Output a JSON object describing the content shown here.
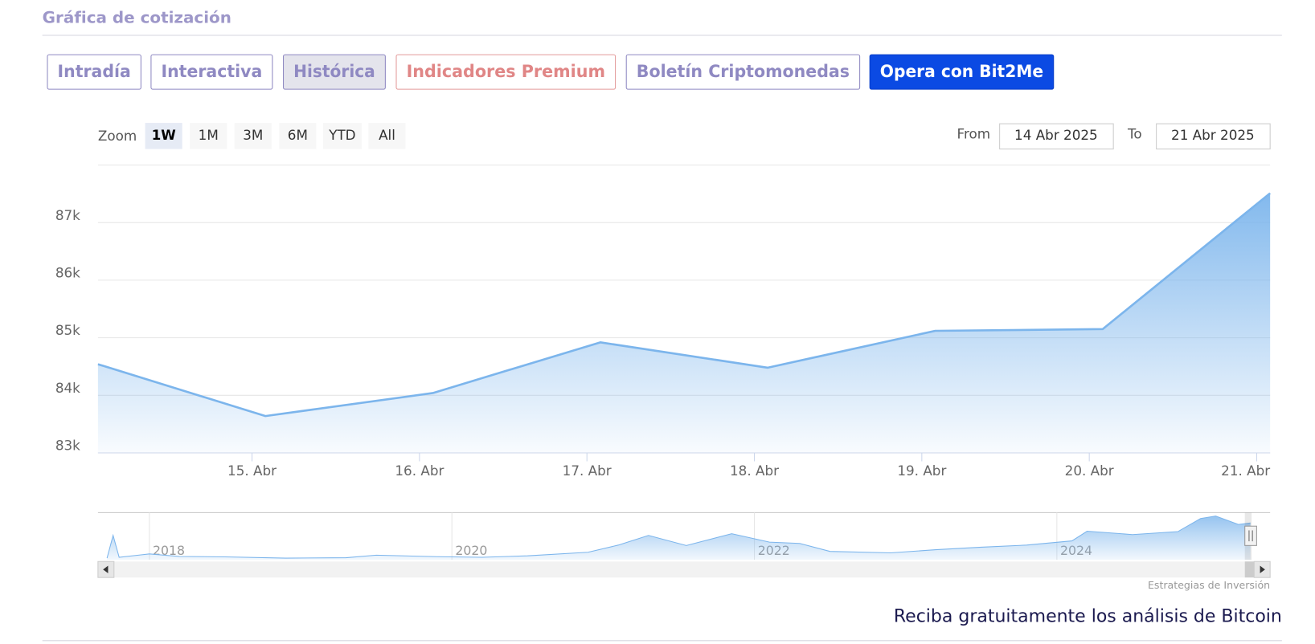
{
  "header": {
    "title": "Gráfica de cotización"
  },
  "tabs": [
    "Intradía",
    "Interactiva",
    "Histórica",
    "Indicadores Premium",
    "Boletín Criptomonedas",
    "Opera con Bit2Me"
  ],
  "zoom": {
    "label": "Zoom",
    "buttons": [
      "1W",
      "1M",
      "3M",
      "6M",
      "YTD",
      "All"
    ]
  },
  "range": {
    "from_label": "From",
    "from": "14 Abr 2025",
    "to_label": "To",
    "to": "21 Abr 2025"
  },
  "chart_data": {
    "type": "area",
    "x": [
      14.08,
      15.08,
      16.08,
      17.08,
      18.08,
      19.08,
      20.08,
      21.08
    ],
    "values": [
      84540,
      83640,
      84040,
      84920,
      84480,
      85120,
      85150,
      87510
    ],
    "color": "#7cb5ec",
    "xlim": [
      14.08,
      21.08
    ],
    "xticks": [
      {
        "value": 15,
        "label": "15. Abr"
      },
      {
        "value": 16,
        "label": "16. Abr"
      },
      {
        "value": 17,
        "label": "17. Abr"
      },
      {
        "value": 18,
        "label": "18. Abr"
      },
      {
        "value": 19,
        "label": "19. Abr"
      },
      {
        "value": 20,
        "label": "20. Abr"
      },
      {
        "value": 21,
        "label": "21. Abr"
      }
    ],
    "ylim": [
      83000,
      88000
    ],
    "yticks": [
      {
        "value": 83000,
        "label": "83k"
      },
      {
        "value": 84000,
        "label": "84k"
      },
      {
        "value": 85000,
        "label": "85k"
      },
      {
        "value": 86000,
        "label": "86k"
      },
      {
        "value": 87000,
        "label": "87k"
      }
    ],
    "grid": true
  },
  "navigator": {
    "x": [
      2017.72,
      2017.76,
      2017.8,
      2017.95,
      2018.0,
      2018.2,
      2018.5,
      2018.9,
      2019.3,
      2019.5,
      2019.9,
      2020.2,
      2020.5,
      2020.9,
      2021.1,
      2021.3,
      2021.55,
      2021.85,
      2022.1,
      2022.3,
      2022.5,
      2022.9,
      2023.2,
      2023.5,
      2023.8,
      2024.1,
      2024.2,
      2024.5,
      2024.8,
      2024.95,
      2025.05,
      2025.2,
      2025.28
    ],
    "values": [
      4000,
      58000,
      6000,
      12000,
      14000,
      8000,
      7000,
      4000,
      5000,
      11000,
      7500,
      6000,
      9500,
      18000,
      35000,
      58000,
      34000,
      62000,
      42000,
      39000,
      20000,
      16500,
      24000,
      30000,
      35000,
      45000,
      68000,
      60000,
      67000,
      98000,
      104000,
      84000,
      87500
    ],
    "xlim": [
      2017.66,
      2025.41
    ],
    "xticks": [
      2018,
      2020,
      2022,
      2024
    ],
    "color": "#7cb5ec"
  },
  "credit": "Estrategias de Inversión",
  "footer": "Reciba gratuitamente los análisis de Bitcoin"
}
